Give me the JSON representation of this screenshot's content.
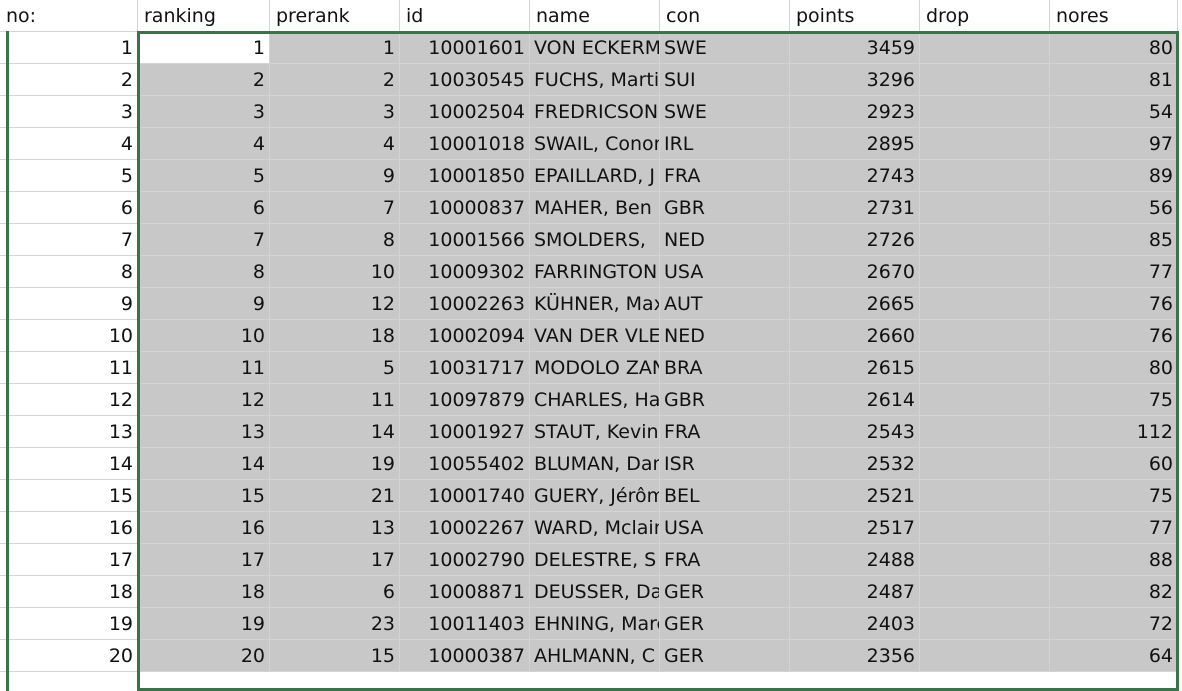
{
  "columns": [
    "no:",
    "ranking",
    "prerank",
    "id",
    "name",
    "con",
    "points",
    "drop",
    "nores"
  ],
  "rows": [
    [
      "1",
      "1",
      "1",
      "10001601",
      "VON ECKERMANN",
      "SWE",
      "3459",
      "",
      "80"
    ],
    [
      "2",
      "2",
      "2",
      "10030545",
      "FUCHS, Martin",
      "SUI",
      "3296",
      "",
      "81"
    ],
    [
      "3",
      "3",
      "3",
      "10002504",
      "FREDRICSON",
      "SWE",
      "2923",
      "",
      "54"
    ],
    [
      "4",
      "4",
      "4",
      "10001018",
      "SWAIL, Conor",
      "IRL",
      "2895",
      "",
      "97"
    ],
    [
      "5",
      "5",
      "9",
      "10001850",
      "EPAILLARD, J",
      "FRA",
      "2743",
      "",
      "89"
    ],
    [
      "6",
      "6",
      "7",
      "10000837",
      "MAHER, Ben",
      "GBR",
      "2731",
      "",
      "56"
    ],
    [
      "7",
      "7",
      "8",
      "10001566",
      "SMOLDERS,",
      "NED",
      "2726",
      "",
      "85"
    ],
    [
      "8",
      "8",
      "10",
      "10009302",
      "FARRINGTON",
      "USA",
      "2670",
      "",
      "77"
    ],
    [
      "9",
      "9",
      "12",
      "10002263",
      "KÜHNER, Max",
      "AUT",
      "2665",
      "",
      "76"
    ],
    [
      "10",
      "10",
      "18",
      "10002094",
      "VAN DER VLEUTEN",
      "NED",
      "2660",
      "",
      "76"
    ],
    [
      "11",
      "11",
      "5",
      "10031717",
      "MODOLO ZANOTELLI",
      "BRA",
      "2615",
      "",
      "80"
    ],
    [
      "12",
      "12",
      "11",
      "10097879",
      "CHARLES, Harry",
      "GBR",
      "2614",
      "",
      "75"
    ],
    [
      "13",
      "13",
      "14",
      "10001927",
      "STAUT, Kevin",
      "FRA",
      "2543",
      "",
      "112"
    ],
    [
      "14",
      "14",
      "19",
      "10055402",
      "BLUMAN, Daniel",
      "ISR",
      "2532",
      "",
      "60"
    ],
    [
      "15",
      "15",
      "21",
      "10001740",
      "GUERY, Jérôme",
      "BEL",
      "2521",
      "",
      "75"
    ],
    [
      "16",
      "16",
      "13",
      "10002267",
      "WARD, Mclain",
      "USA",
      "2517",
      "",
      "77"
    ],
    [
      "17",
      "17",
      "17",
      "10002790",
      "DELESTRE, S",
      "FRA",
      "2488",
      "",
      "88"
    ],
    [
      "18",
      "18",
      "6",
      "10008871",
      "DEUSSER, Daniel",
      "GER",
      "2487",
      "",
      "82"
    ],
    [
      "19",
      "19",
      "23",
      "10011403",
      "EHNING, Marcus",
      "GER",
      "2403",
      "",
      "72"
    ],
    [
      "20",
      "20",
      "15",
      "10000387",
      "AHLMANN, C",
      "GER",
      "2356",
      "",
      "64"
    ]
  ]
}
